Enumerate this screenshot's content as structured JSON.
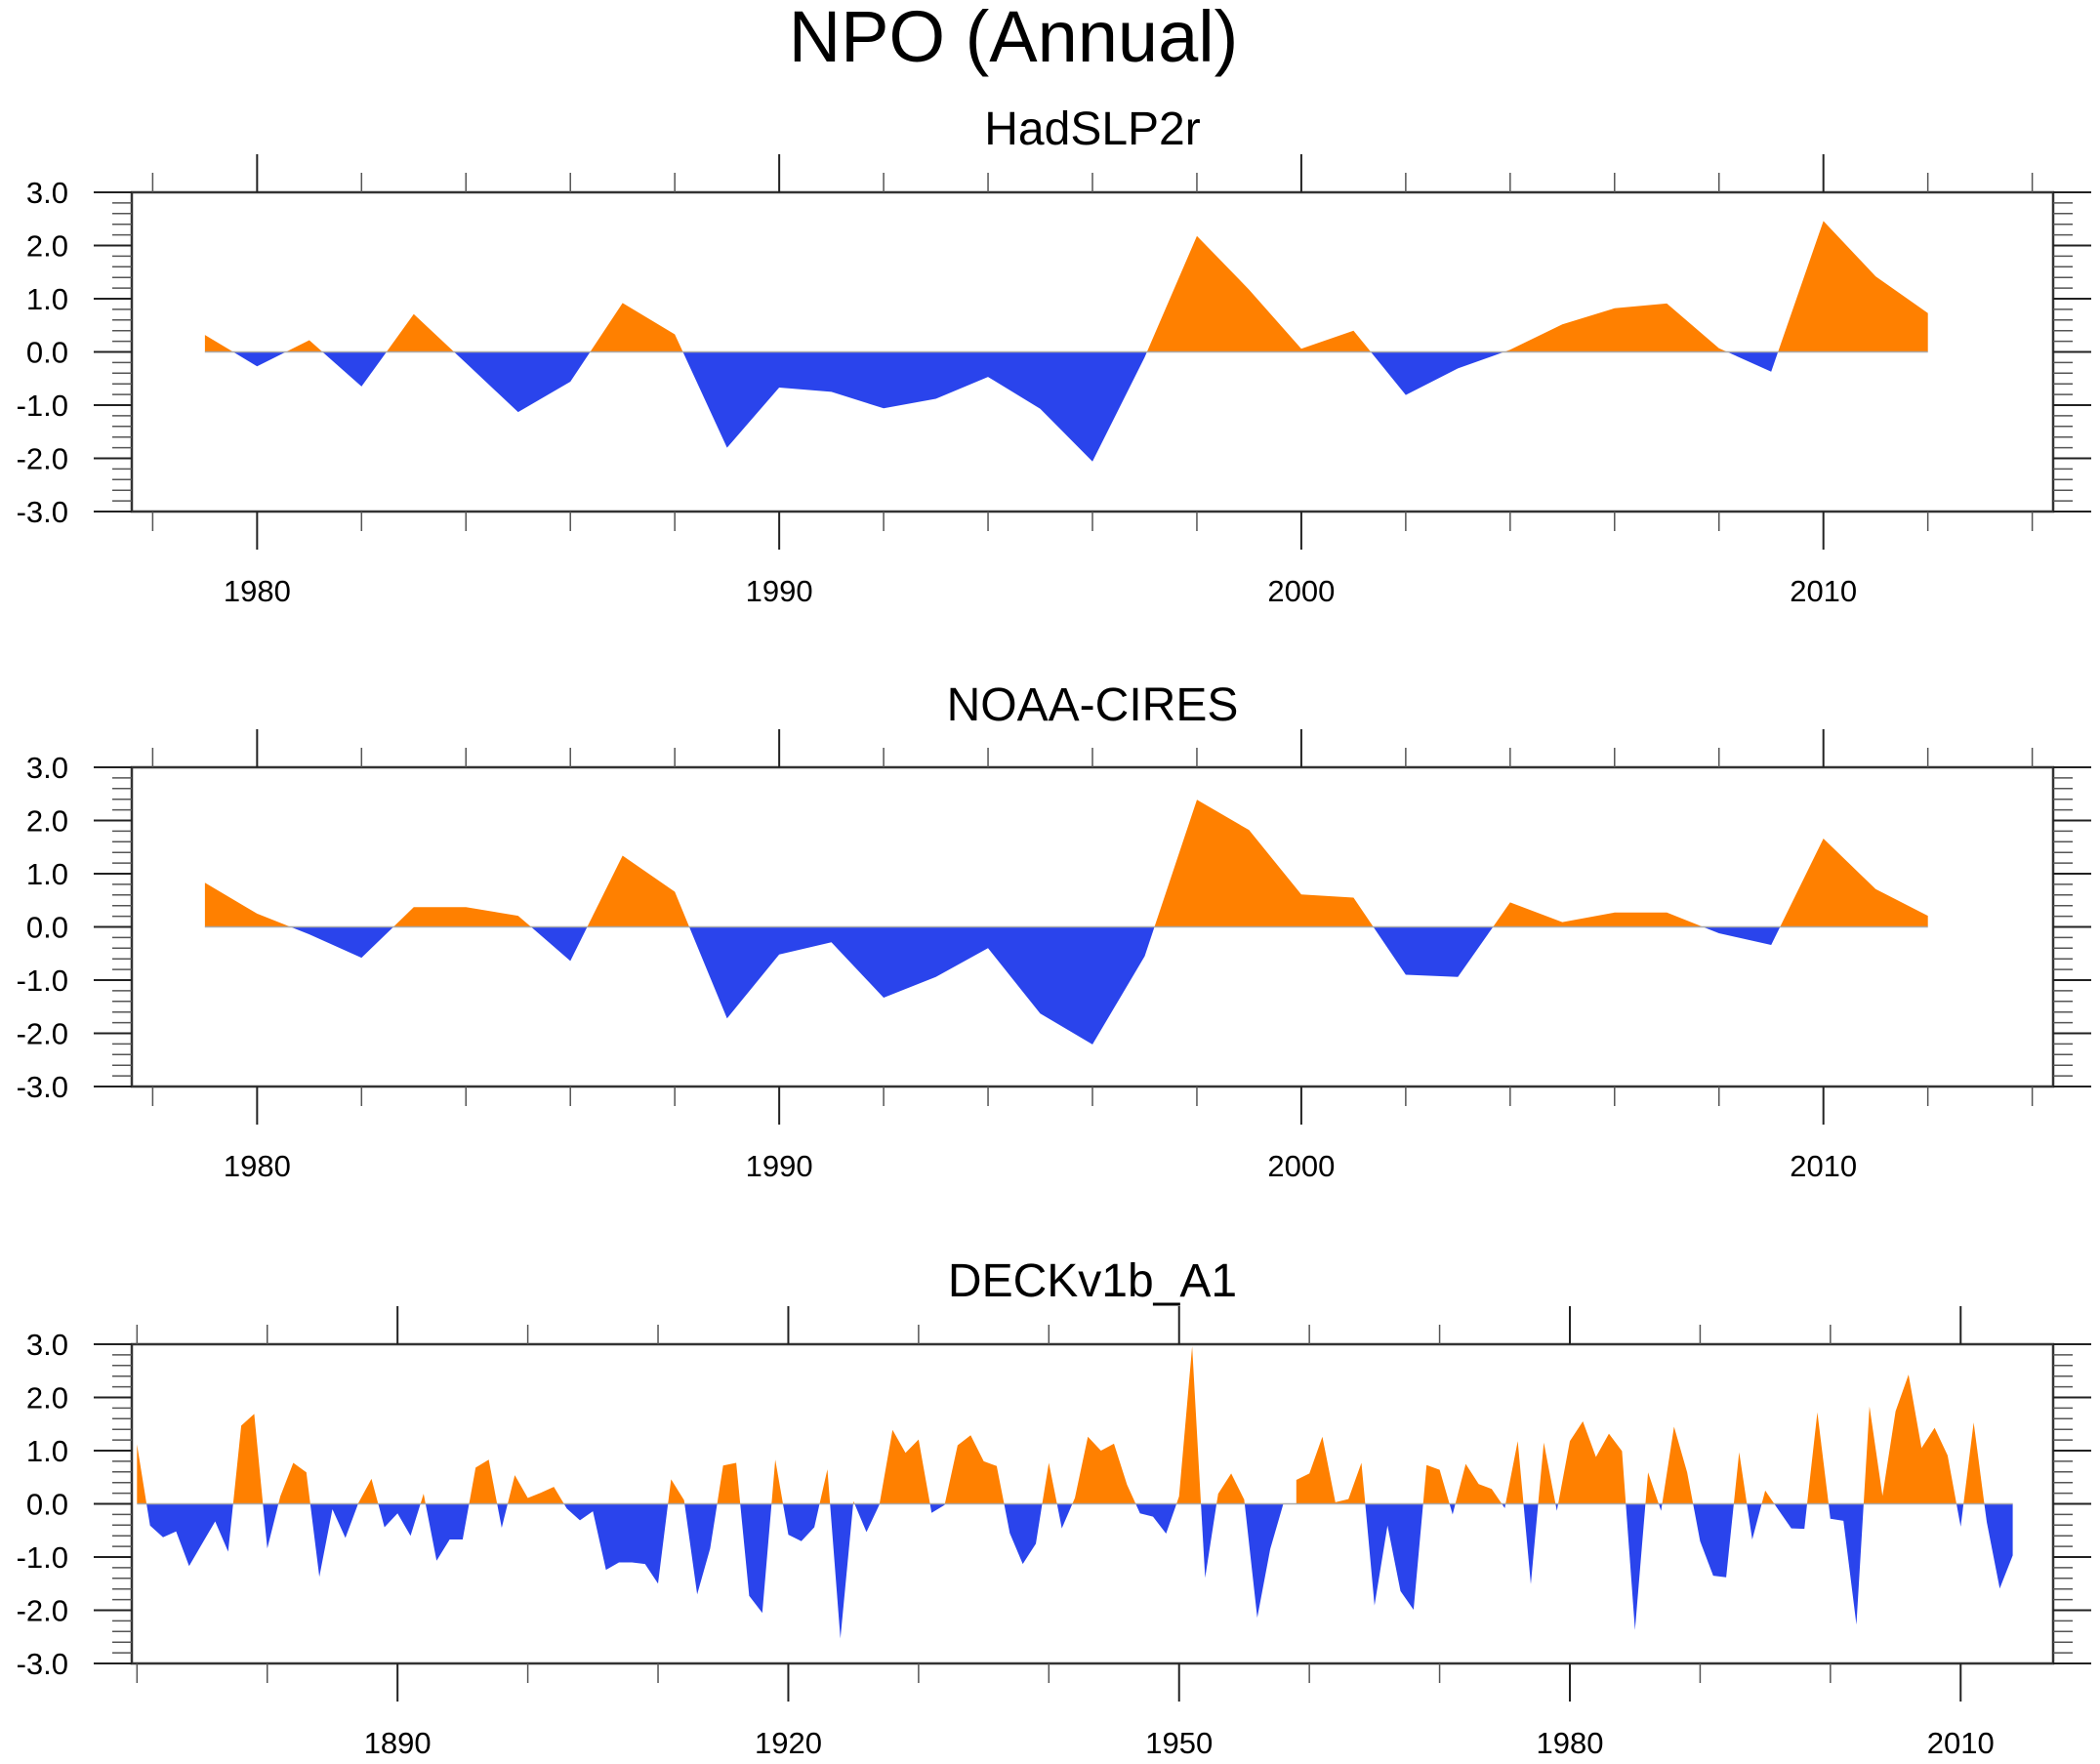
{
  "figure": {
    "title": "NPO (Annual)"
  },
  "chart_data": [
    {
      "type": "area",
      "title": "HadSLP2r",
      "xlabel": "",
      "ylabel": "",
      "xlim": [
        1977.6,
        2014.4
      ],
      "ylim": [
        -3.0,
        3.0
      ],
      "x_major_ticks": [
        1980,
        1990,
        2000,
        2010
      ],
      "x_minor_step": 2,
      "y_major_ticks": [
        3.0,
        2.0,
        1.0,
        0.0,
        -1.0,
        -2.0,
        -3.0
      ],
      "y_tick_labels": [
        "3.0",
        "2.0",
        "1.0",
        "0.0",
        "-1.0",
        "-2.0",
        "-3.0"
      ],
      "y_minor_step": 0.2,
      "x_tick_labels": [
        "1980",
        "1990",
        "2000",
        "2010"
      ],
      "grid": false,
      "positive_color": "#FF8000",
      "negative_color": "#2A44EC",
      "x": [
        1979,
        1980,
        1981,
        1982,
        1983,
        1984,
        1985,
        1986,
        1987,
        1988,
        1989,
        1990,
        1991,
        1992,
        1993,
        1994,
        1995,
        1996,
        1997,
        1998,
        1999,
        2000,
        2001,
        2002,
        2003,
        2004,
        2005,
        2006,
        2007,
        2008,
        2009,
        2010,
        2011,
        2012
      ],
      "values": [
        0.32,
        -0.27,
        0.22,
        -0.65,
        0.71,
        -0.21,
        -1.13,
        -0.56,
        0.92,
        0.33,
        -1.8,
        -0.67,
        -0.75,
        -1.06,
        -0.88,
        -0.47,
        -1.07,
        -2.06,
        -0.1,
        2.18,
        1.17,
        0.06,
        0.4,
        -0.81,
        -0.31,
        0.04,
        0.52,
        0.82,
        0.91,
        0.07,
        -0.37,
        2.46,
        1.42,
        0.73
      ]
    },
    {
      "type": "area",
      "title": "NOAA-CIRES",
      "xlabel": "",
      "ylabel": "",
      "xlim": [
        1977.6,
        2014.4
      ],
      "ylim": [
        -3.0,
        3.0
      ],
      "x_major_ticks": [
        1980,
        1990,
        2000,
        2010
      ],
      "x_minor_step": 2,
      "y_major_ticks": [
        3.0,
        2.0,
        1.0,
        0.0,
        -1.0,
        -2.0,
        -3.0
      ],
      "y_tick_labels": [
        "3.0",
        "2.0",
        "1.0",
        "0.0",
        "-1.0",
        "-2.0",
        "-3.0"
      ],
      "y_minor_step": 0.2,
      "x_tick_labels": [
        "1980",
        "1990",
        "2000",
        "2010"
      ],
      "grid": false,
      "positive_color": "#FF8000",
      "negative_color": "#2A44EC",
      "x": [
        1979,
        1980,
        1981,
        1982,
        1983,
        1984,
        1985,
        1986,
        1987,
        1988,
        1989,
        1990,
        1991,
        1992,
        1993,
        1994,
        1995,
        1996,
        1997,
        1998,
        1999,
        2000,
        2001,
        2002,
        2003,
        2004,
        2005,
        2006,
        2007,
        2008,
        2009,
        2010,
        2011,
        2012
      ],
      "values": [
        0.83,
        0.25,
        -0.14,
        -0.58,
        0.37,
        0.37,
        0.21,
        -0.64,
        1.34,
        0.66,
        -1.72,
        -0.52,
        -0.29,
        -1.33,
        -0.94,
        -0.4,
        -1.63,
        -2.21,
        -0.55,
        2.39,
        1.82,
        0.61,
        0.55,
        -0.9,
        -0.94,
        0.46,
        0.09,
        0.27,
        0.27,
        -0.12,
        -0.34,
        1.66,
        0.71,
        0.21
      ]
    },
    {
      "type": "area",
      "title": "DECKv1b_A1",
      "xlabel": "",
      "ylabel": "",
      "xlim": [
        1869.6,
        2017.1
      ],
      "ylim": [
        -3.0,
        3.0
      ],
      "x_major_ticks": [
        1890,
        1920,
        1950,
        1980,
        2010
      ],
      "x_minor_ticks": [
        1870,
        1880,
        1900,
        1910,
        1930,
        1940,
        1960,
        1970,
        1990,
        2000
      ],
      "y_major_ticks": [
        3.0,
        2.0,
        1.0,
        0.0,
        -1.0,
        -2.0,
        -3.0
      ],
      "y_tick_labels": [
        "3.0",
        "2.0",
        "1.0",
        "0.0",
        "-1.0",
        "-2.0",
        "-3.0"
      ],
      "y_minor_step": 0.2,
      "x_tick_labels": [
        "1890",
        "1920",
        "1950",
        "1980",
        "2010"
      ],
      "grid": false,
      "positive_color": "#FF8000",
      "negative_color": "#2A44EC",
      "x_start": 1870,
      "values": [
        1.12,
        -0.41,
        -0.63,
        -0.52,
        -1.17,
        -0.75,
        -0.33,
        -0.9,
        1.47,
        1.69,
        -0.84,
        0.14,
        0.77,
        0.59,
        -1.37,
        -0.1,
        -0.64,
        0.02,
        0.47,
        -0.44,
        -0.18,
        -0.6,
        0.19,
        -1.07,
        -0.67,
        -0.67,
        0.68,
        0.83,
        -0.45,
        0.54,
        0.11,
        0.21,
        0.32,
        -0.09,
        -0.31,
        -0.14,
        -1.24,
        -1.1,
        -1.1,
        -1.13,
        -1.5,
        0.46,
        0.07,
        -1.7,
        -0.84,
        0.72,
        0.77,
        -1.73,
        -2.05,
        0.83,
        -0.58,
        -0.7,
        -0.44,
        0.65,
        -2.53,
        0.05,
        -0.53,
        -0.01,
        1.39,
        0.96,
        1.21,
        -0.17,
        -0.02,
        1.1,
        1.29,
        0.8,
        0.71,
        -0.55,
        -1.13,
        -0.75,
        0.77,
        -0.46,
        0.11,
        1.26,
        1.0,
        1.13,
        0.36,
        -0.18,
        -0.24,
        -0.56,
        0.14,
        2.96,
        -1.39,
        0.19,
        0.57,
        0.08,
        -2.14,
        -0.85,
        0.0,
        0.45,
        0.57,
        1.26,
        0.03,
        0.09,
        0.77,
        -1.91,
        -0.41,
        -1.64,
        -1.99,
        0.73,
        0.64,
        -0.2,
        0.75,
        0.37,
        0.28,
        -0.08,
        1.18,
        -1.51,
        1.15,
        -0.13,
        1.18,
        1.55,
        0.88,
        1.32,
        0.99,
        -2.37,
        0.59,
        -0.13,
        1.45,
        0.59,
        -0.7,
        -1.35,
        -1.38,
        0.97,
        -0.67,
        0.25,
        -0.11,
        -0.46,
        -0.47,
        1.72,
        -0.28,
        -0.32,
        -2.27,
        1.83,
        0.15,
        1.74,
        2.43,
        1.05,
        1.43,
        0.91,
        -0.43,
        1.53,
        -0.34,
        -1.59,
        -0.97
      ]
    }
  ]
}
